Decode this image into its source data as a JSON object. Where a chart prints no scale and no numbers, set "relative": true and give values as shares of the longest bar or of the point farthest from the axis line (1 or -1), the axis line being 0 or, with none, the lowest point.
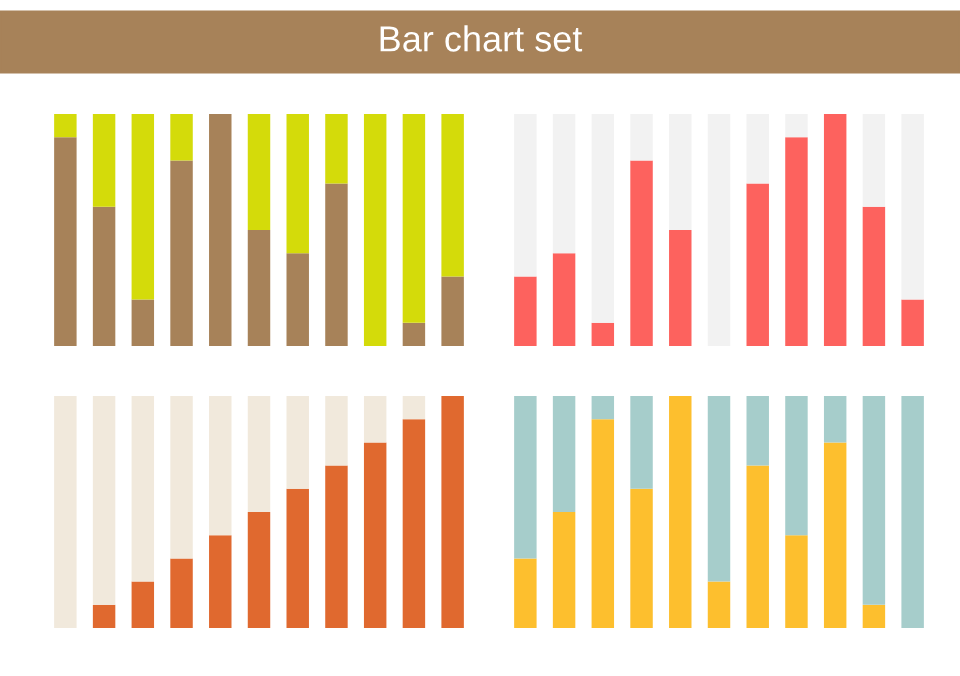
{
  "chart_data": [
    {
      "type": "bar",
      "title": "Bar chart set",
      "stacked": true,
      "relative": true,
      "categories": [
        null,
        null,
        null,
        null,
        null,
        null,
        null,
        null,
        null,
        null,
        null
      ],
      "series": [
        {
          "color": "#a78259",
          "values": [
            0.9,
            0.6,
            0.2,
            0.8,
            1.0,
            0.5,
            0.4,
            0.7,
            0.0,
            0.1,
            0.3
          ]
        },
        {
          "color": "#d4db0a",
          "values": [
            0.1,
            0.4,
            0.8,
            0.2,
            0.0,
            0.5,
            0.6,
            0.3,
            1.0,
            0.9,
            0.7
          ]
        }
      ]
    },
    {
      "type": "bar",
      "stacked": true,
      "relative": true,
      "categories": [
        null,
        null,
        null,
        null,
        null,
        null,
        null,
        null,
        null,
        null,
        null
      ],
      "series": [
        {
          "color": "#fd625e",
          "values": [
            0.3,
            0.4,
            0.1,
            0.8,
            0.5,
            0.0,
            0.7,
            0.9,
            1.0,
            0.6,
            0.2
          ]
        },
        {
          "color": "#f2f2f2",
          "values": [
            0.7,
            0.6,
            0.9,
            0.2,
            0.5,
            1.0,
            0.3,
            0.1,
            0.0,
            0.4,
            0.8
          ]
        }
      ]
    },
    {
      "type": "bar",
      "stacked": true,
      "relative": true,
      "categories": [
        null,
        null,
        null,
        null,
        null,
        null,
        null,
        null,
        null,
        null,
        null
      ],
      "series": [
        {
          "color": "#e0692f",
          "values": [
            0.0,
            0.1,
            0.2,
            0.3,
            0.4,
            0.5,
            0.6,
            0.7,
            0.8,
            0.9,
            1.0
          ]
        },
        {
          "color": "#f1e9dc",
          "values": [
            1.0,
            0.9,
            0.8,
            0.7,
            0.6,
            0.5,
            0.4,
            0.3,
            0.2,
            0.1,
            0.0
          ]
        }
      ]
    },
    {
      "type": "bar",
      "stacked": true,
      "relative": true,
      "categories": [
        null,
        null,
        null,
        null,
        null,
        null,
        null,
        null,
        null,
        null,
        null
      ],
      "series": [
        {
          "color": "#fdbf2e",
          "values": [
            0.3,
            0.5,
            0.9,
            0.6,
            1.0,
            0.2,
            0.7,
            0.4,
            0.8,
            0.1,
            0.0
          ]
        },
        {
          "color": "#a6cdcb",
          "values": [
            0.7,
            0.5,
            0.1,
            0.4,
            0.0,
            0.8,
            0.3,
            0.6,
            0.2,
            0.9,
            1.0
          ]
        }
      ]
    }
  ]
}
